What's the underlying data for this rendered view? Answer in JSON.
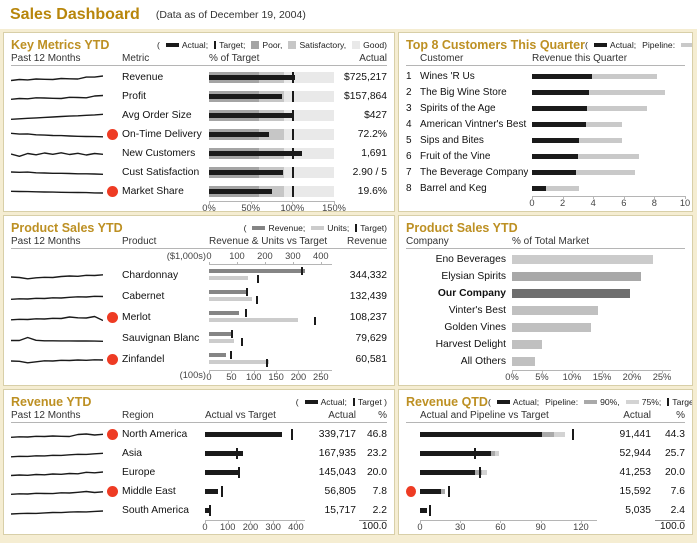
{
  "header": {
    "title": "Sales Dashboard",
    "subtitle": "(Data as of December 19, 2004)"
  },
  "colors": {
    "header_gold": "#b8860b",
    "panel_title_gold": "#bd9023",
    "alert_red": "#ee3b23",
    "actual_black": "#1a1a1a",
    "band_poor": "#a4a4a4",
    "band_satisfactory": "#c6c6c6",
    "band_good": "#e9e9e9",
    "pipeline_gray": "#c9c9c9",
    "pipeline_90": "#a9a9a9",
    "pipeline_75": "#d3d3d3",
    "revenue_bar_gray": "#858585",
    "units_bar_gray": "#cccccc",
    "panel_border_tan": "#d8cfa8",
    "gutter_cream": "#f5edd2"
  },
  "chart_data": [
    {
      "id": "key_metrics",
      "type": "bullet",
      "title": "Key Metrics YTD",
      "legend_prefix": "(",
      "legend": [
        {
          "kind": "bar",
          "color": "#1a1a1a",
          "label": "Actual;"
        },
        {
          "kind": "tick",
          "label": "Target;"
        },
        {
          "kind": "box",
          "color": "#a4a4a4",
          "label": "Poor,"
        },
        {
          "kind": "box",
          "color": "#c6c6c6",
          "label": "Satisfactory,"
        },
        {
          "kind": "box",
          "color": "#e9e9e9",
          "label": "Good)"
        }
      ],
      "columns": [
        "Past 12 Months",
        "Metric",
        "% of Target",
        "Actual"
      ],
      "axis": {
        "ticks": [
          0,
          50,
          100,
          150
        ],
        "tick_labels": [
          "0%",
          "50%",
          "100%",
          "150%"
        ],
        "max": 150
      },
      "target_pct": 100,
      "bands_pct": [
        60,
        90,
        150
      ],
      "rows": [
        {
          "metric": "Revenue",
          "actual_label": "$725,217",
          "pct_of_target": 103,
          "alert": false,
          "sparkline": [
            28,
            36,
            33,
            40,
            38,
            36,
            44,
            42,
            40,
            55,
            55,
            64
          ]
        },
        {
          "metric": "Profit",
          "actual_label": "$157,864",
          "pct_of_target": 87,
          "alert": false,
          "sparkline": [
            30,
            36,
            34,
            42,
            40,
            38,
            36,
            46,
            44,
            42,
            56,
            60
          ]
        },
        {
          "metric": "Avg Order Size",
          "actual_label": "$427",
          "pct_of_target": 101,
          "alert": false,
          "sparkline": [
            22,
            26,
            30,
            33,
            37,
            40,
            44,
            47,
            50,
            54,
            57,
            62
          ]
        },
        {
          "metric": "On-Time Delivery",
          "actual_label": "72.2%",
          "pct_of_target": 72,
          "alert": true,
          "sparkline": [
            62,
            55,
            57,
            50,
            47,
            44,
            43,
            40,
            38,
            36,
            35,
            34
          ]
        },
        {
          "metric": "New Customers",
          "actual_label": "1,691",
          "pct_of_target": 112,
          "alert": false,
          "sparkline": [
            48,
            30,
            52,
            42,
            56,
            46,
            58,
            44,
            54,
            40,
            52,
            46
          ]
        },
        {
          "metric": "Cust Satisfaction",
          "actual_label": "2.90 / 5",
          "pct_of_target": 89,
          "alert": false,
          "sparkline": [
            56,
            54,
            55,
            50,
            48,
            46,
            46,
            44,
            42,
            42,
            40,
            38
          ]
        },
        {
          "metric": "Market Share",
          "actual_label": "19.6%",
          "pct_of_target": 76,
          "alert": true,
          "sparkline": [
            54,
            52,
            51,
            50,
            48,
            47,
            46,
            45,
            44,
            43,
            41,
            40
          ]
        }
      ]
    },
    {
      "id": "top_customers",
      "type": "bar",
      "title": "Top 8 Customers This Quarter",
      "legend_prefix": "(",
      "legend": [
        {
          "kind": "bar",
          "color": "#1a1a1a",
          "label": "Actual;"
        },
        {
          "kind": "text",
          "label": "Pipeline:"
        },
        {
          "kind": "bar",
          "color": "#c9c9c9",
          "label": ")"
        }
      ],
      "columns": [
        "Customer",
        "Revenue this Quarter"
      ],
      "axis": {
        "ticks": [
          0,
          2,
          4,
          6,
          8,
          10
        ],
        "tick_labels": [
          "0",
          "2",
          "4",
          "6",
          "8",
          "10"
        ],
        "max": 10
      },
      "rows": [
        {
          "rank": "1",
          "customer": "Wines 'R Us",
          "actual": 3.9,
          "pipeline": 8.2
        },
        {
          "rank": "2",
          "customer": "The Big Wine Store",
          "actual": 3.7,
          "pipeline": 8.7
        },
        {
          "rank": "3",
          "customer": "Spirits of the Age",
          "actual": 3.6,
          "pipeline": 7.5
        },
        {
          "rank": "4",
          "customer": "American Vintner's Best",
          "actual": 3.5,
          "pipeline": 5.9
        },
        {
          "rank": "5",
          "customer": "Sips and Bites",
          "actual": 3.1,
          "pipeline": 5.9
        },
        {
          "rank": "6",
          "customer": "Fruit of the Vine",
          "actual": 3.0,
          "pipeline": 7.0
        },
        {
          "rank": "7",
          "customer": "The Beverage Company",
          "actual": 2.9,
          "pipeline": 6.7
        },
        {
          "rank": "8",
          "customer": "Barrel and Keg",
          "actual": 0.9,
          "pipeline": 3.1
        }
      ]
    },
    {
      "id": "product_sales",
      "type": "bar",
      "title": "Product Sales YTD",
      "legend_prefix": "(",
      "legend": [
        {
          "kind": "bar",
          "color": "#858585",
          "label": "Revenue;"
        },
        {
          "kind": "bar",
          "color": "#cccccc",
          "label": "Units;"
        },
        {
          "kind": "tick",
          "label": "Target)"
        }
      ],
      "columns": [
        "Past 12 Months",
        "Product",
        "Revenue & Units vs Target",
        "Revenue"
      ],
      "axis_top": {
        "label": "($1,000s)",
        "ticks": [
          0,
          100,
          200,
          300,
          400
        ],
        "tick_labels": [
          "0",
          "100",
          "200",
          "300",
          "400"
        ],
        "max": 440
      },
      "axis_bottom": {
        "label": "(100s)",
        "ticks": [
          0,
          50,
          100,
          150,
          200,
          250
        ],
        "tick_labels": [
          "0",
          "50",
          "100",
          "150",
          "200",
          "250"
        ],
        "max": 275
      },
      "rows": [
        {
          "product": "Chardonnay",
          "revenue_label": "344,332",
          "revenue": 344,
          "revenue_target": 330,
          "units": 88,
          "units_target": 108,
          "alert": false,
          "sparkline": [
            40,
            36,
            26,
            34,
            38,
            36,
            44,
            48,
            46,
            54,
            52,
            58
          ]
        },
        {
          "product": "Cabernet",
          "revenue_label": "132,439",
          "revenue": 132,
          "revenue_target": 131,
          "units": 97,
          "units_target": 104,
          "alert": false,
          "sparkline": [
            30,
            34,
            32,
            38,
            36,
            42,
            40,
            46,
            50,
            48,
            54,
            52
          ]
        },
        {
          "product": "Merlot",
          "revenue_label": "108,237",
          "revenue": 108,
          "revenue_target": 128,
          "units": 198,
          "units_target": 235,
          "alert": true,
          "sparkline": [
            34,
            38,
            36,
            42,
            40,
            46,
            44,
            56,
            50,
            48,
            60,
            28
          ]
        },
        {
          "product": "Sauvignan Blanc",
          "revenue_label": "79,629",
          "revenue": 80,
          "revenue_target": 80,
          "units": 55,
          "units_target": 72,
          "alert": false,
          "sparkline": [
            36,
            36,
            60,
            38,
            34,
            34,
            33,
            33,
            32,
            32,
            31,
            30
          ]
        },
        {
          "product": "Zinfandel",
          "revenue_label": "60,581",
          "revenue": 61,
          "revenue_target": 74,
          "units": 135,
          "units_target": 128,
          "alert": true,
          "sparkline": [
            40,
            38,
            26,
            34,
            42,
            40,
            46,
            44,
            48,
            46,
            50,
            48
          ]
        }
      ]
    },
    {
      "id": "market_share",
      "type": "bar",
      "title": "Product Sales YTD",
      "legend_prefix": "",
      "legend": [],
      "columns": [
        "Company",
        "% of Total Market"
      ],
      "axis": {
        "ticks": [
          0,
          5,
          10,
          15,
          20,
          25
        ],
        "tick_labels": [
          "0%",
          "5%",
          "10%",
          "15%",
          "20%",
          "25%"
        ],
        "max": 26.5
      },
      "rows": [
        {
          "company": "Eno Beverages",
          "pct": 23.5,
          "color": "#cbcbcb",
          "bold": false
        },
        {
          "company": "Elysian Spirits",
          "pct": 21.5,
          "color": "#a8a8a8",
          "bold": false
        },
        {
          "company": "Our Company",
          "pct": 19.6,
          "color": "#6e6e6e",
          "bold": true
        },
        {
          "company": "Vinter's Best",
          "pct": 14.4,
          "color": "#c0c0c0",
          "bold": false
        },
        {
          "company": "Golden Vines",
          "pct": 13.2,
          "color": "#c0c0c0",
          "bold": false
        },
        {
          "company": "Harvest Delight",
          "pct": 5.0,
          "color": "#c0c0c0",
          "bold": false
        },
        {
          "company": "All Others",
          "pct": 3.9,
          "color": "#c0c0c0",
          "bold": false
        }
      ]
    },
    {
      "id": "revenue_ytd",
      "type": "bar",
      "title": "Revenue YTD",
      "legend_prefix": "(",
      "legend": [
        {
          "kind": "bar",
          "color": "#1a1a1a",
          "label": "Actual;"
        },
        {
          "kind": "tick",
          "label": "Target )"
        }
      ],
      "columns": [
        "Past 12 Months",
        "Region",
        "Actual vs Target",
        "Actual",
        "%"
      ],
      "axis": {
        "ticks": [
          0,
          100,
          200,
          300,
          400
        ],
        "tick_labels": [
          "0",
          "100",
          "200",
          "300",
          "400"
        ],
        "max": 440
      },
      "total": "100.0",
      "rows": [
        {
          "region": "North America",
          "actual_label": "339,717",
          "pct_label": "46.8",
          "value": 340,
          "target": 380,
          "alert": true,
          "sparkline": [
            30,
            34,
            32,
            38,
            36,
            40,
            38,
            36,
            52,
            56,
            48,
            54
          ]
        },
        {
          "region": "Asia",
          "actual_label": "167,935",
          "pct_label": "23.2",
          "value": 168,
          "target": 135,
          "alert": false,
          "sparkline": [
            26,
            30,
            29,
            34,
            33,
            38,
            37,
            42,
            46,
            45,
            50,
            54
          ]
        },
        {
          "region": "Europe",
          "actual_label": "145,043",
          "pct_label": "20.0",
          "value": 145,
          "target": 147,
          "alert": false,
          "sparkline": [
            28,
            32,
            30,
            36,
            34,
            40,
            38,
            44,
            42,
            54,
            50,
            56
          ]
        },
        {
          "region": "Middle East",
          "actual_label": "56,805",
          "pct_label": "7.8",
          "value": 57,
          "target": 70,
          "alert": true,
          "sparkline": [
            30,
            34,
            32,
            38,
            36,
            35,
            42,
            40,
            46,
            52,
            44,
            50
          ]
        },
        {
          "region": "South America",
          "actual_label": "15,717",
          "pct_label": "2.2",
          "value": 16,
          "target": 18,
          "alert": false,
          "sparkline": [
            24,
            27,
            30,
            29,
            33,
            36,
            35,
            39,
            42,
            41,
            45,
            48
          ]
        }
      ]
    },
    {
      "id": "revenue_qtd",
      "type": "bar",
      "title": "Revenue QTD",
      "legend_prefix": "(",
      "legend": [
        {
          "kind": "bar",
          "color": "#1a1a1a",
          "label": "Actual;"
        },
        {
          "kind": "text",
          "label": "Pipeline:"
        },
        {
          "kind": "bar",
          "color": "#a9a9a9",
          "label": "90%,"
        },
        {
          "kind": "bar",
          "color": "#d3d3d3",
          "label": "75%;"
        },
        {
          "kind": "tick",
          "label": "Target)"
        }
      ],
      "columns": [
        "Actual and Pipeline vs Target",
        "Actual",
        "%"
      ],
      "axis": {
        "ticks": [
          0,
          30,
          60,
          90,
          120
        ],
        "tick_labels": [
          "0",
          "30",
          "60",
          "90",
          "120"
        ],
        "max": 132
      },
      "total": "100.0",
      "rows": [
        {
          "actual_label": "91,441",
          "pct_label": "44.3",
          "value": 91,
          "pipe90": 100,
          "pipe75": 108,
          "target": 113,
          "alert": false
        },
        {
          "actual_label": "52,944",
          "pct_label": "25.7",
          "value": 53,
          "pipe90": 56,
          "pipe75": 59,
          "target": 40,
          "alert": false
        },
        {
          "actual_label": "41,253",
          "pct_label": "20.0",
          "value": 41,
          "pipe90": 46,
          "pipe75": 50,
          "target": 44,
          "alert": false
        },
        {
          "actual_label": "15,592",
          "pct_label": "7.6",
          "value": 16,
          "pipe90": 19,
          "pipe75": 19,
          "target": 21,
          "alert": true
        },
        {
          "actual_label": "5,035",
          "pct_label": "2.4",
          "value": 5,
          "pipe90": 5,
          "pipe75": 5,
          "target": 7,
          "alert": false
        }
      ]
    }
  ]
}
